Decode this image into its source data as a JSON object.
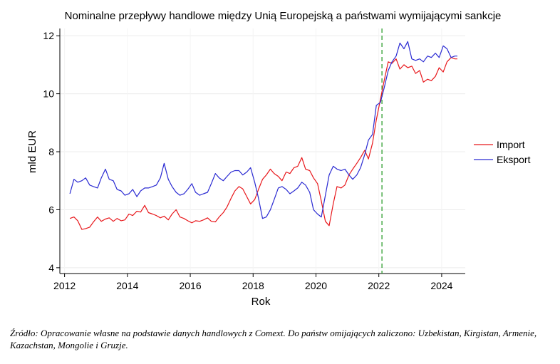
{
  "chart_data": {
    "type": "line",
    "title": "Nominalne przepływy handlowe między Unią Europejską a państwami wymijającymi sankcje",
    "xlabel": "Rok",
    "ylabel": "mld EUR",
    "xlim": [
      2011.85,
      2024.75
    ],
    "ylim": [
      3.8,
      12.25
    ],
    "xticks": [
      "2012",
      "2014",
      "2016",
      "2018",
      "2020",
      "2022",
      "2024"
    ],
    "yticks": [
      "4",
      "6",
      "8",
      "10",
      "12"
    ],
    "grid": true,
    "legend_position": "right",
    "vline": {
      "x": 2022.1,
      "color": "#2e9e2e"
    },
    "series": [
      {
        "name": "Import",
        "color": "#e8171b",
        "x": [
          2012.17,
          2012.3,
          2012.42,
          2012.55,
          2012.67,
          2012.8,
          2012.92,
          2013.05,
          2013.17,
          2013.3,
          2013.42,
          2013.55,
          2013.67,
          2013.8,
          2013.92,
          2014.05,
          2014.17,
          2014.3,
          2014.42,
          2014.55,
          2014.67,
          2014.8,
          2014.92,
          2015.05,
          2015.17,
          2015.3,
          2015.42,
          2015.55,
          2015.67,
          2015.8,
          2015.92,
          2016.05,
          2016.17,
          2016.3,
          2016.42,
          2016.55,
          2016.67,
          2016.8,
          2016.92,
          2017.05,
          2017.17,
          2017.3,
          2017.42,
          2017.55,
          2017.67,
          2017.8,
          2017.92,
          2018.05,
          2018.17,
          2018.3,
          2018.42,
          2018.55,
          2018.67,
          2018.8,
          2018.92,
          2019.05,
          2019.17,
          2019.3,
          2019.42,
          2019.55,
          2019.67,
          2019.8,
          2019.92,
          2020.05,
          2020.17,
          2020.3,
          2020.42,
          2020.55,
          2020.67,
          2020.8,
          2020.92,
          2021.05,
          2021.17,
          2021.3,
          2021.42,
          2021.55,
          2021.67,
          2021.8,
          2021.92,
          2022.05,
          2022.17,
          2022.3,
          2022.42,
          2022.55,
          2022.67,
          2022.8,
          2022.92,
          2023.05,
          2023.17,
          2023.3,
          2023.42,
          2023.55,
          2023.67,
          2023.8,
          2023.92,
          2024.05,
          2024.17,
          2024.3,
          2024.42,
          2024.5
        ],
        "values": [
          5.7,
          5.75,
          5.62,
          5.32,
          5.35,
          5.4,
          5.58,
          5.75,
          5.6,
          5.68,
          5.72,
          5.6,
          5.7,
          5.62,
          5.65,
          5.85,
          5.8,
          5.95,
          5.92,
          6.15,
          5.9,
          5.85,
          5.8,
          5.72,
          5.78,
          5.65,
          5.85,
          6.0,
          5.75,
          5.7,
          5.62,
          5.55,
          5.62,
          5.6,
          5.65,
          5.72,
          5.6,
          5.58,
          5.75,
          5.9,
          6.1,
          6.4,
          6.65,
          6.8,
          6.72,
          6.45,
          6.2,
          6.35,
          6.7,
          7.05,
          7.2,
          7.4,
          7.25,
          7.15,
          7.0,
          7.3,
          7.25,
          7.45,
          7.5,
          7.8,
          7.4,
          7.35,
          7.1,
          6.9,
          6.3,
          5.6,
          5.45,
          6.2,
          6.8,
          6.75,
          6.85,
          7.2,
          7.4,
          7.6,
          7.8,
          8.05,
          7.75,
          8.3,
          9.1,
          9.8,
          10.45,
          11.1,
          11.05,
          11.2,
          10.85,
          11.0,
          10.9,
          10.95,
          10.7,
          10.8,
          10.4,
          10.5,
          10.45,
          10.6,
          10.9,
          10.75,
          11.1,
          11.25,
          11.2,
          11.2
        ]
      },
      {
        "name": "Eksport",
        "color": "#2a2ad2",
        "x": [
          2012.17,
          2012.3,
          2012.42,
          2012.55,
          2012.67,
          2012.8,
          2012.92,
          2013.05,
          2013.17,
          2013.3,
          2013.42,
          2013.55,
          2013.67,
          2013.8,
          2013.92,
          2014.05,
          2014.17,
          2014.3,
          2014.42,
          2014.55,
          2014.67,
          2014.8,
          2014.92,
          2015.05,
          2015.17,
          2015.3,
          2015.42,
          2015.55,
          2015.67,
          2015.8,
          2015.92,
          2016.05,
          2016.17,
          2016.3,
          2016.42,
          2016.55,
          2016.67,
          2016.8,
          2016.92,
          2017.05,
          2017.17,
          2017.3,
          2017.42,
          2017.55,
          2017.67,
          2017.8,
          2017.92,
          2018.05,
          2018.17,
          2018.3,
          2018.42,
          2018.55,
          2018.67,
          2018.8,
          2018.92,
          2019.05,
          2019.17,
          2019.3,
          2019.42,
          2019.55,
          2019.67,
          2019.8,
          2019.92,
          2020.05,
          2020.17,
          2020.3,
          2020.42,
          2020.55,
          2020.67,
          2020.8,
          2020.92,
          2021.05,
          2021.17,
          2021.3,
          2021.42,
          2021.55,
          2021.67,
          2021.8,
          2021.92,
          2022.05,
          2022.17,
          2022.3,
          2022.42,
          2022.55,
          2022.67,
          2022.8,
          2022.92,
          2023.05,
          2023.17,
          2023.3,
          2023.42,
          2023.55,
          2023.67,
          2023.8,
          2023.92,
          2024.05,
          2024.17,
          2024.3,
          2024.42,
          2024.5
        ],
        "values": [
          6.55,
          7.05,
          6.95,
          7.0,
          7.1,
          6.85,
          6.8,
          6.75,
          7.1,
          7.4,
          7.05,
          7.0,
          6.7,
          6.65,
          6.5,
          6.55,
          6.7,
          6.45,
          6.65,
          6.75,
          6.75,
          6.8,
          6.85,
          7.1,
          7.6,
          7.05,
          6.8,
          6.6,
          6.5,
          6.55,
          6.7,
          6.9,
          6.6,
          6.5,
          6.55,
          6.6,
          6.9,
          7.25,
          7.1,
          7.0,
          7.15,
          7.3,
          7.35,
          7.35,
          7.2,
          7.3,
          7.45,
          6.95,
          6.4,
          5.7,
          5.75,
          6.0,
          6.35,
          6.75,
          6.8,
          6.7,
          6.55,
          6.65,
          6.75,
          6.95,
          6.85,
          6.6,
          6.0,
          5.85,
          5.75,
          6.5,
          7.2,
          7.5,
          7.4,
          7.35,
          7.4,
          7.2,
          7.05,
          7.2,
          7.45,
          7.9,
          8.4,
          8.6,
          9.6,
          9.7,
          10.2,
          10.8,
          11.1,
          11.3,
          11.75,
          11.55,
          11.8,
          11.2,
          11.15,
          11.2,
          11.1,
          11.3,
          11.25,
          11.4,
          11.25,
          11.65,
          11.55,
          11.25,
          11.3,
          11.3
        ]
      }
    ]
  },
  "footnote": "Źródło: Opracowanie własne na podstawie danych handlowych z Comext. Do państw omijających zaliczono: Uzbekistan, Kirgistan, Armenie, Kazachstan, Mongolie i Gruzje."
}
